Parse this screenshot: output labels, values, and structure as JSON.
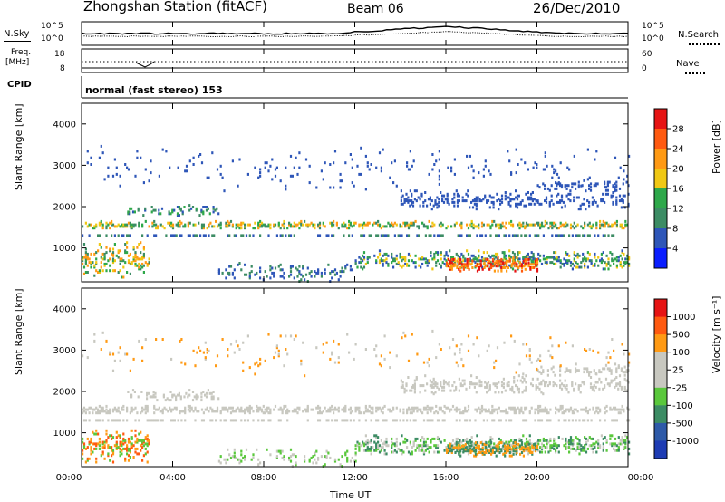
{
  "header": {
    "title": "Zhongshan Station (fitACF)",
    "beam": "Beam 06",
    "date": "26/Dec/2010"
  },
  "summary": {
    "nsky_label": "N.Sky",
    "nsearch_label": "N.Search",
    "freq_label": "Freq.",
    "freq_unit": "[MHz]",
    "nave_label": "Nave",
    "cpid_label": "CPID",
    "cpid_value": "normal (fast stereo) 153",
    "noise_ticks": [
      "10^5",
      "10^0"
    ],
    "noise_ticks_right": [
      "10^5",
      "10^0"
    ],
    "freq_ticks": [
      "18",
      "8"
    ],
    "nave_ticks": [
      "60",
      "0"
    ]
  },
  "chart_data": [
    {
      "type": "heatmap",
      "title": "",
      "ylabel": "Slant Range [km]",
      "xlabel": "",
      "ylim": [
        180,
        4500
      ],
      "yticks": [
        "4000",
        "3000",
        "2000",
        "1000"
      ],
      "colorbar_label": "Power [dB]",
      "colorbar_ticks": [
        "28",
        "24",
        "20",
        "16",
        "12",
        "8",
        "4"
      ],
      "colors": [
        "#0a1eff",
        "#2e56b8",
        "#3c8c64",
        "#2ea84a",
        "#f0c814",
        "#ff9a14",
        "#ff5a10",
        "#e61414"
      ]
    },
    {
      "type": "heatmap",
      "title": "",
      "ylabel": "Slant Range [km]",
      "xlabel": "Time UT",
      "ylim": [
        180,
        4500
      ],
      "yticks": [
        "4000",
        "3000",
        "2000",
        "1000"
      ],
      "xticks": [
        "00:00",
        "04:00",
        "08:00",
        "12:00",
        "16:00",
        "20:00",
        "00:00"
      ],
      "colorbar_label": "Velocity [m s⁻¹]",
      "colorbar_ticks": [
        "1000",
        "500",
        "100",
        "25",
        "-25",
        "-100",
        "-500",
        "-1000"
      ],
      "colors": [
        "#1e3cb4",
        "#2e5aa8",
        "#3c8c64",
        "#5ac83c",
        "#c8c8c0",
        "#c8c8c0",
        "#ff9a14",
        "#ff5a10",
        "#e61414"
      ]
    }
  ]
}
